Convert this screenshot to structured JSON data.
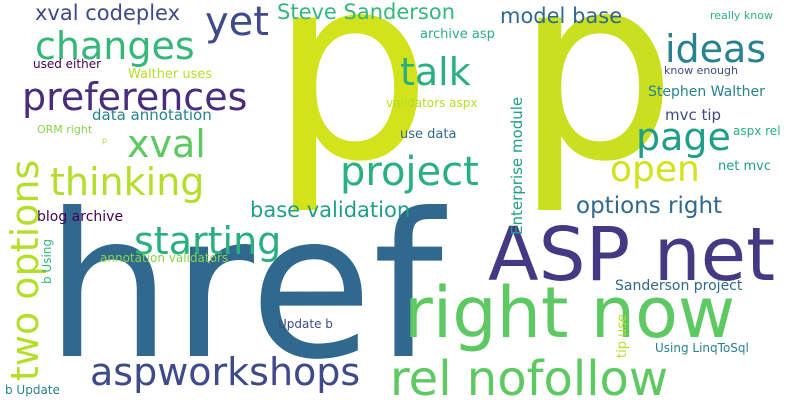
{
  "palette": {
    "background": "#ffffff",
    "lime": "#d2e21b",
    "yellow_green": "#b5de2b",
    "green": "#5ec962",
    "light_green": "#86d549",
    "teal_green": "#35b779",
    "sea_green": "#2ab07f",
    "teal": "#1f9e89",
    "cyan_blue": "#26828e",
    "steel_blue": "#31688e",
    "slate_blue": "#3e4a89",
    "dark_indigo": "#443983",
    "indigo": "#472d7b",
    "deep_purple": "#440154"
  },
  "words": {
    "p1": "p",
    "p2": "p",
    "href": "href",
    "asp_net": "ASP net",
    "right_now": "right now",
    "rel_nofollow": "rel nofollow",
    "preferences": "preferences",
    "aspworkshops": "aspworkshops",
    "two_options": "two options",
    "project": "project",
    "thinking": "thinking",
    "changes": "changes",
    "starting": "starting",
    "ideas": "ideas",
    "talk": "talk",
    "page": "page",
    "open": "open",
    "yet": "yet",
    "xval": "xval",
    "xval_codeplex": "xval codeplex",
    "steve_sanderson": "Steve Sanderson",
    "model_base": "model base",
    "base_validation": "base validation",
    "options_right": "options right",
    "enterprise_module": "Enterprise module",
    "stephen_walther": "Stephen Walther",
    "data_annotation": "data annotation",
    "blog_archive": "blog archive",
    "sanderson_project": "Sanderson project",
    "archive_asp": "archive asp",
    "walther_uses": "Walther uses",
    "used_either": "used either",
    "validators_aspx": "validators aspx",
    "use_data": "use data",
    "mvc_tip": "mvc tip",
    "aspx_rel": "aspx rel",
    "net_mvc": "net mvc",
    "know_enough": "know enough",
    "really_know": "really know",
    "orm_right": "ORM right",
    "p_small": "p",
    "annotation_validators": "annotation validators",
    "update_b": "Update b",
    "using_linqtosql": "Using LinqToSql",
    "tip_use": "tip use",
    "b_using": "b Using",
    "b_update": "b Update"
  }
}
